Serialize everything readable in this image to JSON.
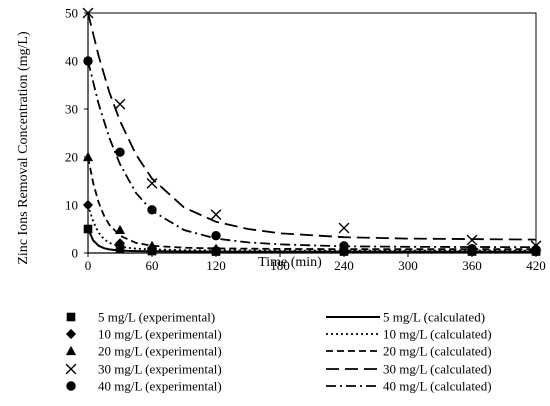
{
  "chart_data": {
    "type": "scatter",
    "xlabel": "Time (min)",
    "ylabel": "Zinc Ions Removal Concentration (mg/L)",
    "xlim": [
      0,
      420
    ],
    "ylim": [
      0,
      50
    ],
    "xticks": [
      "0",
      "60",
      "120",
      "180",
      "240",
      "300",
      "360",
      "420"
    ],
    "yticks": [
      "0",
      "10",
      "20",
      "30",
      "40",
      "50"
    ],
    "grid": false,
    "legend_placement": "bottom",
    "colors": {
      "marks": "#000000",
      "axes": "#000000"
    },
    "experimental": [
      {
        "name": "5 mg/L (experimental)",
        "marker": "square",
        "x": [
          0,
          30,
          60,
          120,
          240,
          360,
          420
        ],
        "y": [
          5,
          0.8,
          0.4,
          0.3,
          0.3,
          0.3,
          0.3
        ]
      },
      {
        "name": "10 mg/L (experimental)",
        "marker": "diamond",
        "x": [
          0,
          30,
          60,
          120,
          240,
          360,
          420
        ],
        "y": [
          10,
          2.0,
          1.0,
          0.7,
          0.6,
          0.5,
          0.5
        ]
      },
      {
        "name": "20 mg/L (experimental)",
        "marker": "triangle",
        "x": [
          0,
          30,
          60,
          120,
          240,
          360,
          420
        ],
        "y": [
          20,
          4.8,
          1.5,
          0.9,
          0.8,
          0.7,
          0.7
        ]
      },
      {
        "name": "30 mg/L (experimental)",
        "marker": "x",
        "x": [
          0,
          30,
          60,
          120,
          240,
          360,
          420
        ],
        "y": [
          50,
          31,
          14.5,
          8,
          5.2,
          2.7,
          1.5
        ]
      },
      {
        "name": "40 mg/L (experimental)",
        "marker": "circle",
        "x": [
          0,
          30,
          60,
          120,
          240,
          360,
          420
        ],
        "y": [
          40,
          21,
          9,
          3.6,
          1.5,
          0.9,
          0.7
        ]
      }
    ],
    "calculated": [
      {
        "name": "5 mg/L  (calculated)",
        "dash": "solid",
        "x": [
          0,
          5,
          10,
          15,
          20,
          30,
          45,
          60,
          90,
          120,
          180,
          240,
          300,
          360,
          420
        ],
        "y": [
          5,
          2.6,
          1.5,
          1.0,
          0.75,
          0.5,
          0.4,
          0.35,
          0.32,
          0.3,
          0.3,
          0.3,
          0.3,
          0.3,
          0.3
        ]
      },
      {
        "name": "10 mg/L  (calculated)",
        "dash": "dot",
        "x": [
          0,
          5,
          10,
          15,
          20,
          30,
          45,
          60,
          90,
          120,
          180,
          240,
          300,
          360,
          420
        ],
        "y": [
          10,
          6.5,
          4.2,
          2.9,
          2.1,
          1.3,
          0.9,
          0.75,
          0.6,
          0.55,
          0.5,
          0.5,
          0.5,
          0.5,
          0.5
        ]
      },
      {
        "name": "20 mg/L  (calculated)",
        "dash": "dash",
        "x": [
          0,
          5,
          10,
          15,
          20,
          30,
          45,
          60,
          90,
          120,
          180,
          240,
          300,
          360,
          420
        ],
        "y": [
          20,
          14.5,
          10.5,
          7.8,
          5.9,
          3.6,
          2.1,
          1.5,
          1.1,
          0.95,
          0.85,
          0.8,
          0.8,
          0.8,
          0.8
        ]
      },
      {
        "name": "30 mg/L  (calculated)",
        "dash": "longdash",
        "x": [
          0,
          10,
          20,
          30,
          45,
          60,
          90,
          120,
          150,
          180,
          240,
          300,
          360,
          420
        ],
        "y": [
          50,
          41,
          33.5,
          27.5,
          20.5,
          15.5,
          9.5,
          6.5,
          5.0,
          4.1,
          3.3,
          3.0,
          2.9,
          2.8
        ]
      },
      {
        "name": "40 mg/L  (calculated)",
        "dash": "dashdot",
        "x": [
          0,
          10,
          20,
          30,
          45,
          60,
          90,
          120,
          150,
          180,
          240,
          300,
          360,
          420
        ],
        "y": [
          40,
          31,
          24,
          18.5,
          12.5,
          8.8,
          4.8,
          3.0,
          2.2,
          1.8,
          1.4,
          1.3,
          1.25,
          1.2
        ]
      }
    ]
  }
}
